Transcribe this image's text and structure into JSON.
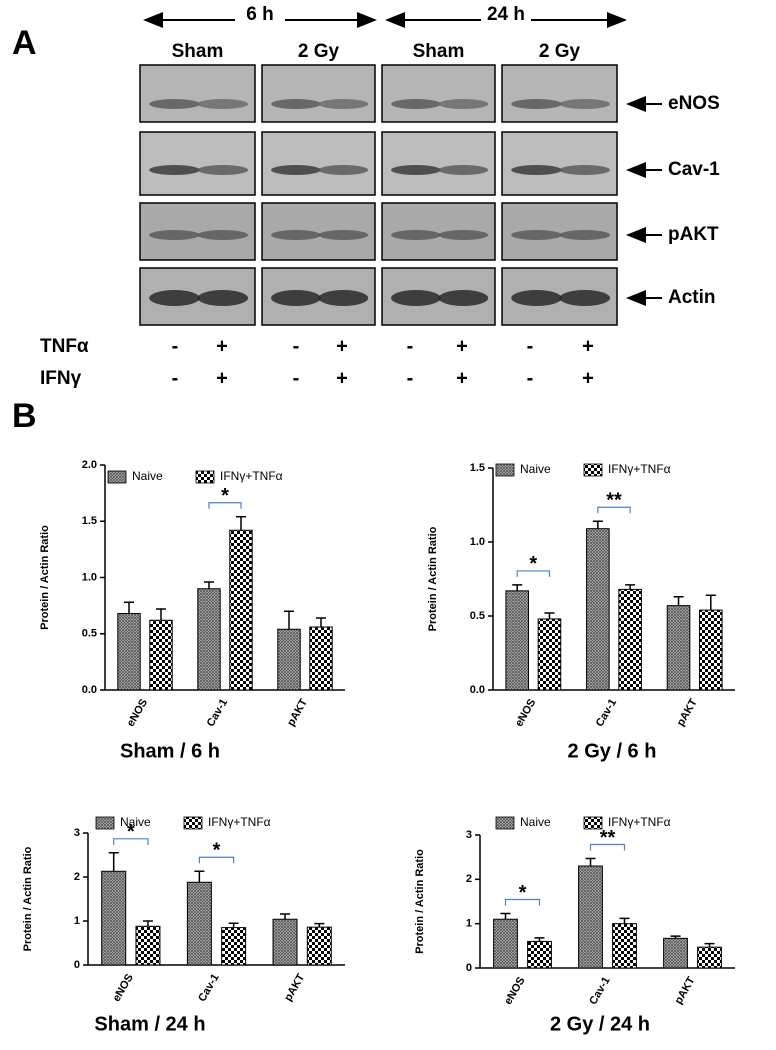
{
  "panel_a": {
    "label": "A",
    "time_groups": [
      {
        "label": "6 h",
        "groups": [
          "Sham",
          "2 Gy"
        ]
      },
      {
        "label": "24 h",
        "groups": [
          "Sham",
          "2 Gy"
        ]
      }
    ],
    "proteins": [
      "eNOS",
      "Cav-1",
      "pAKT",
      "Actin"
    ],
    "treatments": [
      {
        "name": "TNFα",
        "lanes": [
          "-",
          "+",
          "-",
          "+",
          "-",
          "+",
          "-",
          "+"
        ]
      },
      {
        "name": "IFNγ",
        "lanes": [
          "-",
          "+",
          "-",
          "+",
          "-",
          "+",
          "-",
          "+"
        ]
      }
    ]
  },
  "panel_b": {
    "label": "B"
  },
  "chart_data": [
    {
      "type": "bar",
      "title": "Sham / 6 h",
      "y_label": "Protein / Actin Ratio",
      "categories": [
        "eNOS",
        "Cav-1",
        "pAKT"
      ],
      "series": [
        {
          "name": "Naive",
          "color": "#555555",
          "values": [
            0.68,
            0.9,
            0.54
          ],
          "errors": [
            0.1,
            0.06,
            0.16
          ]
        },
        {
          "name": "IFNγ+TNFα",
          "color": "#000000",
          "values": [
            0.62,
            1.42,
            0.56
          ],
          "errors": [
            0.1,
            0.12,
            0.08
          ]
        }
      ],
      "annotations": [
        null,
        "*",
        null
      ],
      "ylim": [
        0,
        2
      ],
      "yticks": [
        {
          "value": 0,
          "label": "0.0"
        },
        0.5,
        {
          "value": 1,
          "label": "1.0"
        },
        1.5,
        {
          "value": 2,
          "label": "2.0"
        }
      ]
    },
    {
      "type": "bar",
      "title": "2 Gy / 6 h",
      "y_label": "Protein / Actin Ratio",
      "categories": [
        "eNOS",
        "Cav-1",
        "pAKT"
      ],
      "series": [
        {
          "name": "Naive",
          "color": "#555555",
          "values": [
            0.67,
            1.09,
            0.57
          ],
          "errors": [
            0.04,
            0.05,
            0.06
          ]
        },
        {
          "name": "IFNγ+TNFα",
          "color": "#000000",
          "values": [
            0.48,
            0.68,
            0.54
          ],
          "errors": [
            0.04,
            0.03,
            0.1
          ]
        }
      ],
      "annotations": [
        "*",
        "**",
        null
      ],
      "ylim": [
        0,
        1.5
      ],
      "yticks": [
        {
          "value": 0,
          "label": "0.0"
        },
        0.5,
        {
          "value": 1,
          "label": "1.0"
        },
        1.5
      ]
    },
    {
      "type": "bar",
      "title": "Sham / 24 h",
      "y_label": "Protein / Actin Ratio",
      "categories": [
        "eNOS",
        "Cav-1",
        "pAKT"
      ],
      "series": [
        {
          "name": "Naive",
          "color": "#555555",
          "values": [
            2.13,
            1.88,
            1.04
          ],
          "errors": [
            0.42,
            0.25,
            0.12
          ]
        },
        {
          "name": "IFNγ+TNFα",
          "color": "#000000",
          "values": [
            0.88,
            0.85,
            0.86
          ],
          "errors": [
            0.12,
            0.1,
            0.08
          ]
        }
      ],
      "annotations": [
        "*",
        "*",
        null
      ],
      "ylim": [
        0,
        3
      ],
      "yticks": [
        0,
        1,
        2,
        3
      ]
    },
    {
      "type": "bar",
      "title": "2 Gy / 24 h",
      "y_label": "Protein / Actin Ratio",
      "categories": [
        "eNOS",
        "Cav-1",
        "pAKT"
      ],
      "series": [
        {
          "name": "Naive",
          "color": "#555555",
          "values": [
            1.1,
            2.3,
            0.67
          ],
          "errors": [
            0.13,
            0.17,
            0.05
          ]
        },
        {
          "name": "IFNγ+TNFα",
          "color": "#000000",
          "values": [
            0.6,
            1.0,
            0.47
          ],
          "errors": [
            0.08,
            0.12,
            0.08
          ]
        }
      ],
      "annotations": [
        "*",
        "**",
        null
      ],
      "ylim": [
        0,
        3
      ],
      "yticks": [
        0,
        1,
        2,
        3
      ]
    }
  ]
}
